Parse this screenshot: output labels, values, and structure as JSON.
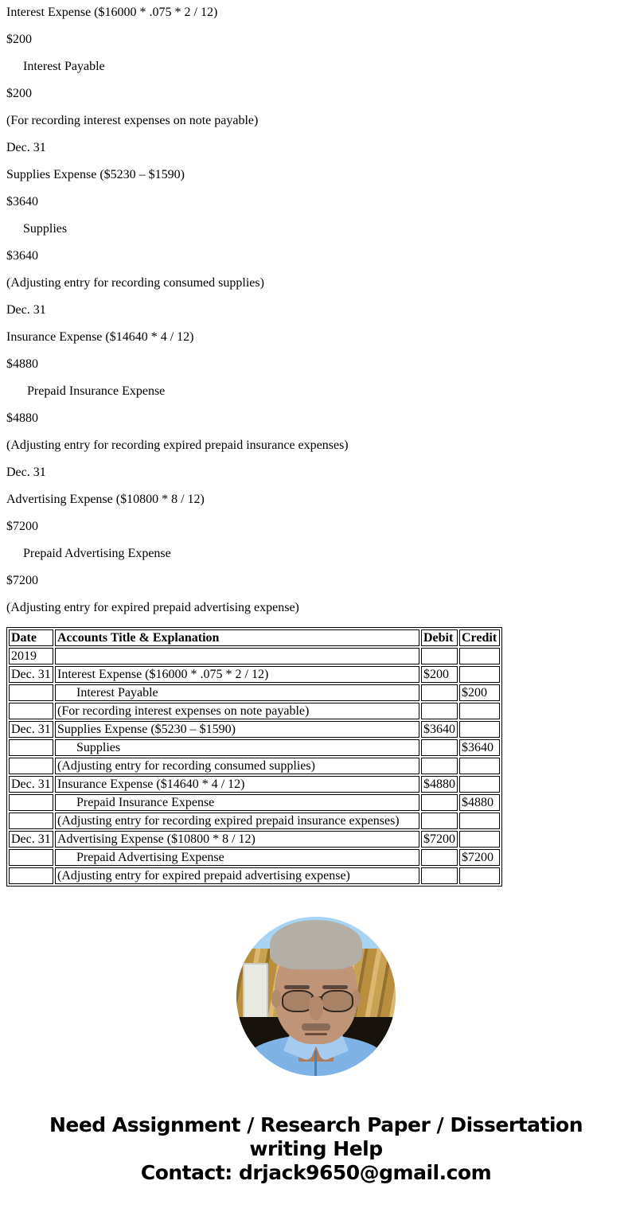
{
  "page": {
    "background_color": "#ffffff",
    "text_color": "#000000"
  },
  "paragraphs": [
    {
      "text": "Interest Expense ($16000 * .075 * 2 / 12)",
      "indent": 0
    },
    {
      "text": "$200",
      "indent": 0
    },
    {
      "text": "Interest Payable",
      "indent": 1
    },
    {
      "text": "$200",
      "indent": 0
    },
    {
      "text": "(For recording interest expenses on note payable)",
      "indent": 0
    },
    {
      "text": "Dec. 31",
      "indent": 0
    },
    {
      "text": "Supplies Expense ($5230 – $1590)",
      "indent": 0
    },
    {
      "text": "$3640",
      "indent": 0
    },
    {
      "text": "Supplies",
      "indent": 1
    },
    {
      "text": "$3640",
      "indent": 0
    },
    {
      "text": "(Adjusting entry for recording consumed supplies)",
      "indent": 0
    },
    {
      "text": "Dec. 31",
      "indent": 0
    },
    {
      "text": "Insurance Expense ($14640 * 4 / 12)",
      "indent": 0
    },
    {
      "text": "$4880",
      "indent": 0
    },
    {
      "text": "Prepaid Insurance Expense",
      "indent": 2
    },
    {
      "text": "$4880",
      "indent": 0
    },
    {
      "text": "(Adjusting entry for recording expired prepaid insurance expenses)",
      "indent": 0
    },
    {
      "text": "Dec. 31",
      "indent": 0
    },
    {
      "text": "Advertising Expense ($10800 * 8 / 12)",
      "indent": 0
    },
    {
      "text": "$7200",
      "indent": 0
    },
    {
      "text": "Prepaid Advertising Expense",
      "indent": 1
    },
    {
      "text": "$7200",
      "indent": 0
    },
    {
      "text": "(Adjusting entry for expired prepaid advertising expense)",
      "indent": 0
    }
  ],
  "journal_table": {
    "headers": [
      "Date",
      "Accounts Title & Explanation",
      "Debit",
      "Credit"
    ],
    "rows": [
      {
        "date": "2019",
        "account": "",
        "debit": "",
        "credit": "",
        "indent": 0
      },
      {
        "date": "Dec. 31",
        "account": "Interest Expense ($16000 * .075 * 2 / 12)",
        "debit": "$200",
        "credit": "",
        "indent": 0
      },
      {
        "date": "",
        "account": "Interest Payable",
        "debit": "",
        "credit": "$200",
        "indent": 1
      },
      {
        "date": "",
        "account": "(For recording interest expenses on note payable)",
        "debit": "",
        "credit": "",
        "indent": 0
      },
      {
        "date": "Dec. 31",
        "account": "Supplies Expense ($5230 – $1590)",
        "debit": "$3640",
        "credit": "",
        "indent": 0
      },
      {
        "date": "",
        "account": "Supplies",
        "debit": "",
        "credit": "$3640",
        "indent": 1
      },
      {
        "date": "",
        "account": "(Adjusting entry for recording consumed supplies)",
        "debit": "",
        "credit": "",
        "indent": 0
      },
      {
        "date": "Dec. 31",
        "account": "Insurance Expense ($14640 * 4 / 12)",
        "debit": "$4880",
        "credit": "",
        "indent": 0
      },
      {
        "date": "",
        "account": "Prepaid Insurance Expense",
        "debit": "",
        "credit": "$4880",
        "indent": 1
      },
      {
        "date": "",
        "account": "(Adjusting entry for recording expired prepaid insurance expenses)",
        "debit": "",
        "credit": "",
        "indent": 0
      },
      {
        "date": "Dec. 31",
        "account": "Advertising Expense ($10800 * 8 / 12)",
        "debit": "$7200",
        "credit": "",
        "indent": 0
      },
      {
        "date": "",
        "account": "Prepaid Advertising Expense",
        "debit": "",
        "credit": "$7200",
        "indent": 1
      },
      {
        "date": "",
        "account": "(Adjusting entry for expired prepaid advertising expense)",
        "debit": "",
        "credit": "",
        "indent": 0
      }
    ]
  },
  "avatar": {
    "description": "circular photo of an elderly man with gray hair and glasses wearing a light blue shirt",
    "colors": {
      "sky": "#a9d4f1",
      "curtain_gold": "#b98f3e",
      "dark_band": "#17130c",
      "shirt_blue": "#7fb3e6",
      "skin": "#c09577",
      "hair_gray": "#b3afa7"
    }
  },
  "footer": {
    "line1": "Need Assignment / Research Paper / Dissertation",
    "line2": "writing Help",
    "line3": "Contact: drjack9650@gmail.com"
  }
}
